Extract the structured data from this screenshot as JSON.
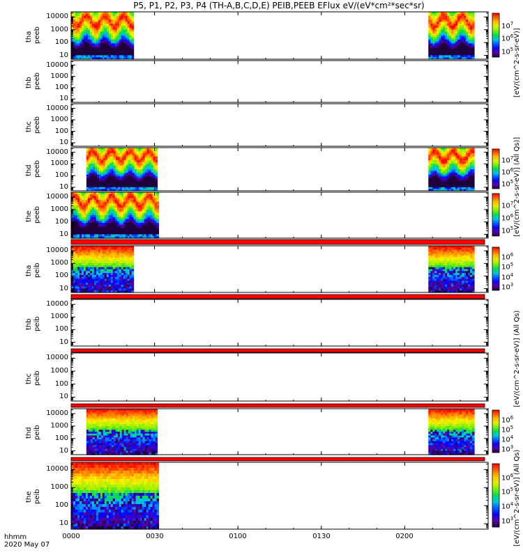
{
  "title": "P5, P1, P2, P3, P4 (TH-A,B,C,D,E) PEIB,PEEB EFlux eV/(eV*cm²*sec*sr)",
  "footer": {
    "hhmm": "hhmm",
    "date": "2020 May 07"
  },
  "colorbar_labels": {
    "peeb_top": "[eV/(cm^2-s-sr-eV)]",
    "peeb_mid": "[eV/(cm^2-s-sr-eV)] (All Qs)]",
    "peib_top": "[eV/(cm^2-s-sr-eV)] (All Qs)",
    "peib_bottom": "[eV/(cm^2-s-sr-eV)] (All Qs)"
  },
  "chart_data": {
    "type": "heatmap",
    "x_ticks": [
      "0000",
      "0030",
      "0100",
      "0130",
      "0200"
    ],
    "y_ticks": [
      "10",
      "100",
      "1000",
      "10000"
    ],
    "y_scale": "log",
    "panels": [
      {
        "probe": "tha",
        "type": "peeb",
        "ylabel1": "tha",
        "ylabel2": "peeb",
        "has_data": true,
        "intervals": [
          [
            0,
            22.5
          ],
          [
            128.5,
            145
          ]
        ],
        "cbar": "peeb",
        "cbar_ticks": [
          "10^5",
          "10^6",
          "10^7"
        ],
        "red_bar": false
      },
      {
        "probe": "thb",
        "type": "peeb",
        "ylabel1": "thb",
        "ylabel2": "peeb",
        "has_data": false,
        "intervals": [],
        "cbar": null,
        "cbar_ticks": [],
        "red_bar": false
      },
      {
        "probe": "thc",
        "type": "peeb",
        "ylabel1": "thc",
        "ylabel2": "peeb",
        "has_data": false,
        "intervals": [],
        "cbar": null,
        "cbar_ticks": [],
        "red_bar": false
      },
      {
        "probe": "thd",
        "type": "peeb",
        "ylabel1": "thd",
        "ylabel2": "peeb",
        "has_data": true,
        "intervals": [
          [
            5.5,
            31
          ],
          [
            128.5,
            145
          ]
        ],
        "cbar": "peeb",
        "cbar_ticks": [
          "10^5",
          "10^6",
          "10^7"
        ],
        "red_bar": false
      },
      {
        "probe": "the",
        "type": "peeb",
        "ylabel1": "the",
        "ylabel2": "peeb",
        "has_data": true,
        "intervals": [
          [
            0,
            31.5
          ]
        ],
        "cbar": "peeb",
        "cbar_ticks": [
          "10^5",
          "10^6",
          "10^7"
        ],
        "red_bar": true
      },
      {
        "probe": "tha",
        "type": "peib",
        "ylabel1": "tha",
        "ylabel2": "peib",
        "has_data": true,
        "intervals": [
          [
            0,
            22.5
          ],
          [
            128.5,
            145
          ]
        ],
        "cbar": "peib",
        "cbar_ticks": [
          "10^3",
          "10^4",
          "10^5",
          "10^6"
        ],
        "red_bar": true
      },
      {
        "probe": "thb",
        "type": "peib",
        "ylabel1": "thb",
        "ylabel2": "peib",
        "has_data": false,
        "intervals": [],
        "cbar": null,
        "cbar_ticks": [],
        "red_bar": true
      },
      {
        "probe": "thc",
        "type": "peib",
        "ylabel1": "thc",
        "ylabel2": "peib",
        "has_data": false,
        "intervals": [],
        "cbar": null,
        "cbar_ticks": [],
        "red_bar": true
      },
      {
        "probe": "thd",
        "type": "peib",
        "ylabel1": "thd",
        "ylabel2": "peib",
        "has_data": true,
        "intervals": [
          [
            5.5,
            31
          ],
          [
            128.5,
            145
          ]
        ],
        "cbar": "peib",
        "cbar_ticks": [
          "10^3",
          "10^4",
          "10^5",
          "10^6"
        ],
        "red_bar": true
      },
      {
        "probe": "the",
        "type": "peib",
        "ylabel1": "the",
        "ylabel2": "peib",
        "has_data": true,
        "intervals": [
          [
            0,
            31.5
          ]
        ],
        "cbar": "peib",
        "cbar_ticks": [
          "10^3",
          "10^4",
          "10^5",
          "10^6"
        ],
        "red_bar": false
      }
    ]
  }
}
